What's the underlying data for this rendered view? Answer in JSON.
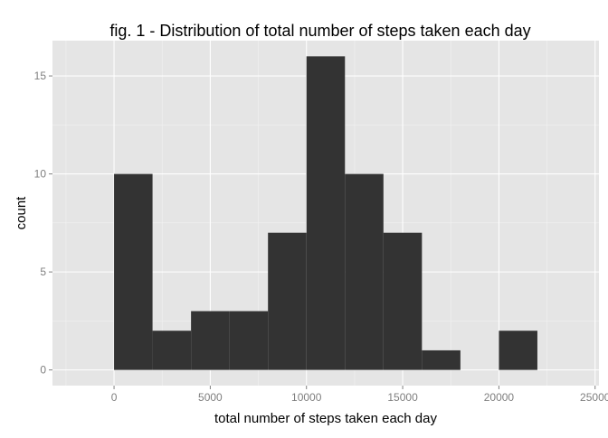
{
  "chart_data": {
    "type": "bar",
    "title": "fig. 1 - Distribution of total number of steps taken each day",
    "xlabel": "total number of steps taken each day",
    "ylabel": "count",
    "bin_width": 2000,
    "bins": [
      {
        "start": 0,
        "end": 2000,
        "count": 10
      },
      {
        "start": 2000,
        "end": 4000,
        "count": 2
      },
      {
        "start": 4000,
        "end": 6000,
        "count": 3
      },
      {
        "start": 6000,
        "end": 8000,
        "count": 3
      },
      {
        "start": 8000,
        "end": 10000,
        "count": 7
      },
      {
        "start": 10000,
        "end": 12000,
        "count": 16
      },
      {
        "start": 12000,
        "end": 14000,
        "count": 10
      },
      {
        "start": 14000,
        "end": 16000,
        "count": 7
      },
      {
        "start": 16000,
        "end": 18000,
        "count": 1
      },
      {
        "start": 18000,
        "end": 20000,
        "count": 0
      },
      {
        "start": 20000,
        "end": 22000,
        "count": 2
      }
    ],
    "xlim": [
      -3200,
      25200
    ],
    "ylim": [
      -0.8,
      16.8
    ],
    "x_ticks": [
      0,
      5000,
      10000,
      15000,
      20000,
      25000
    ],
    "x_tick_labels": [
      "0",
      "5000",
      "10000",
      "15000",
      "20000",
      "25000"
    ],
    "y_ticks": [
      0,
      5,
      10,
      15
    ],
    "y_tick_labels": [
      "0",
      "5",
      "10",
      "15"
    ],
    "grid": true,
    "colors": {
      "panel": "#e5e5e5",
      "grid_major": "#ffffff",
      "grid_minor": "#f2f2f2",
      "bar": "#333333",
      "tick_text": "#7f7f7f",
      "label_text": "#000000"
    }
  }
}
